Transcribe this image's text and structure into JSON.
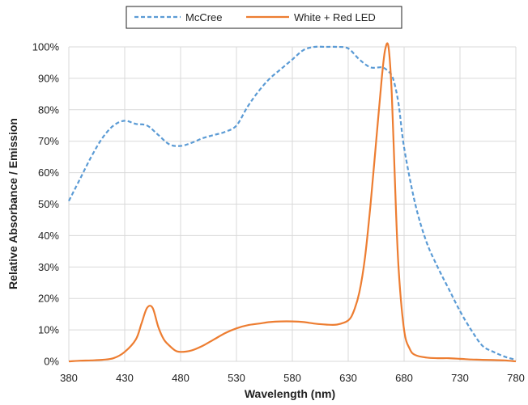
{
  "chart_data": {
    "type": "line",
    "title": "",
    "xlabel": "Wavelength (nm)",
    "ylabel": "Relative Absorbance / Emission",
    "xlim": [
      380,
      780
    ],
    "ylim": [
      0,
      1
    ],
    "x_ticks": [
      380,
      430,
      480,
      530,
      580,
      630,
      680,
      730,
      780
    ],
    "x_tick_labels": [
      "380",
      "430",
      "480",
      "530",
      "580",
      "630",
      "680",
      "730",
      "780"
    ],
    "y_ticks": [
      0,
      0.1,
      0.2,
      0.3,
      0.4,
      0.5,
      0.6,
      0.7,
      0.8,
      0.9,
      1.0
    ],
    "y_tick_labels": [
      "0%",
      "10%",
      "20%",
      "30%",
      "40%",
      "50%",
      "60%",
      "70%",
      "80%",
      "90%",
      "100%"
    ],
    "grid": true,
    "legend_position": "top-center",
    "series": [
      {
        "name": "McCree",
        "color": "#5b9bd5",
        "style": "dashed",
        "x": [
          380,
          390,
          400,
          410,
          420,
          430,
          440,
          450,
          460,
          470,
          480,
          490,
          500,
          510,
          520,
          530,
          540,
          550,
          560,
          570,
          580,
          590,
          600,
          610,
          620,
          630,
          640,
          650,
          660,
          665,
          670,
          675,
          680,
          690,
          700,
          710,
          720,
          730,
          740,
          750,
          760,
          770,
          780
        ],
        "y": [
          0.51,
          0.58,
          0.65,
          0.71,
          0.75,
          0.765,
          0.755,
          0.75,
          0.72,
          0.69,
          0.685,
          0.695,
          0.71,
          0.72,
          0.73,
          0.75,
          0.81,
          0.86,
          0.9,
          0.93,
          0.96,
          0.99,
          1.0,
          1.0,
          1.0,
          0.995,
          0.96,
          0.935,
          0.935,
          0.925,
          0.9,
          0.82,
          0.68,
          0.5,
          0.38,
          0.3,
          0.23,
          0.16,
          0.1,
          0.05,
          0.03,
          0.015,
          0.005
        ]
      },
      {
        "name": "White + Red LED",
        "color": "#ed7d31",
        "style": "solid",
        "x": [
          380,
          390,
          400,
          410,
          420,
          430,
          440,
          445,
          450,
          455,
          460,
          465,
          470,
          475,
          480,
          490,
          500,
          510,
          520,
          530,
          540,
          550,
          560,
          570,
          580,
          590,
          600,
          610,
          620,
          630,
          635,
          640,
          645,
          650,
          655,
          660,
          663,
          666,
          669,
          672,
          675,
          680,
          685,
          690,
          700,
          710,
          720,
          730,
          740,
          750,
          760,
          770,
          780
        ],
        "y": [
          0.0,
          0.002,
          0.003,
          0.005,
          0.01,
          0.03,
          0.07,
          0.12,
          0.17,
          0.17,
          0.11,
          0.07,
          0.05,
          0.035,
          0.03,
          0.035,
          0.05,
          0.07,
          0.09,
          0.105,
          0.115,
          0.12,
          0.125,
          0.127,
          0.127,
          0.125,
          0.12,
          0.117,
          0.117,
          0.13,
          0.16,
          0.22,
          0.33,
          0.5,
          0.7,
          0.9,
          0.99,
          1.0,
          0.85,
          0.55,
          0.3,
          0.1,
          0.04,
          0.02,
          0.012,
          0.01,
          0.01,
          0.008,
          0.006,
          0.005,
          0.004,
          0.003,
          0.0
        ]
      }
    ]
  }
}
